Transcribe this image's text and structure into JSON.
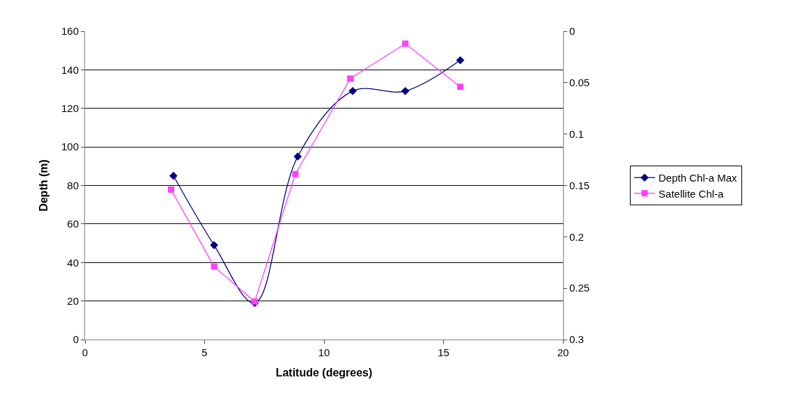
{
  "chart_data": {
    "type": "line",
    "xlabel": "Latitude (degrees)",
    "ylabel": "Depth (m)",
    "xlim": [
      0,
      20
    ],
    "xticks": [
      0,
      5,
      10,
      15,
      20
    ],
    "ylim": [
      0,
      160
    ],
    "yticks": [
      0,
      20,
      40,
      60,
      80,
      100,
      120,
      140,
      160
    ],
    "y2lim": [
      0.3,
      0
    ],
    "y2ticks": [
      0,
      0.05,
      0.1,
      0.15,
      0.2,
      0.25,
      0.3
    ],
    "grid": "y",
    "legend": "right",
    "series": [
      {
        "name": "Depth Chl-a Max",
        "color": "#000080",
        "marker": "diamond",
        "x": [
          3.7,
          5.4,
          7.1,
          8.9,
          11.2,
          13.4,
          15.7
        ],
        "values": [
          85,
          49,
          19,
          95,
          129,
          129,
          145
        ]
      },
      {
        "name": "Satellite Chl-a",
        "color": "#ff40ff",
        "marker": "square",
        "axis": "y2",
        "x": [
          3.6,
          5.4,
          7.1,
          8.8,
          11.1,
          13.4,
          15.7
        ],
        "values": [
          0.154,
          0.229,
          0.263,
          0.139,
          0.046,
          0.012,
          0.054
        ]
      }
    ]
  }
}
